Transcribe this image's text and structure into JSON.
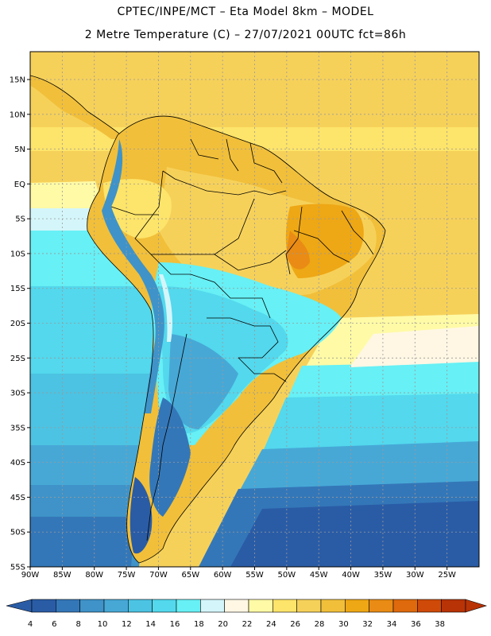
{
  "header": {
    "title_line1": "CPTEC/INPE/MCT –  Eta Model 8km – MODEL",
    "title_line2": "2 Metre Temperature (C) – 27/07/2021 00UTC fct=86h"
  },
  "map": {
    "lon_range": [
      -90,
      -20
    ],
    "lat_range": [
      -55,
      19
    ],
    "grid_lines": true,
    "lat_ticks": [
      {
        "value": 15,
        "label": "15N"
      },
      {
        "value": 10,
        "label": "10N"
      },
      {
        "value": 5,
        "label": "5N"
      },
      {
        "value": 0,
        "label": "EQ"
      },
      {
        "value": -5,
        "label": "5S"
      },
      {
        "value": -10,
        "label": "10S"
      },
      {
        "value": -15,
        "label": "15S"
      },
      {
        "value": -20,
        "label": "20S"
      },
      {
        "value": -25,
        "label": "25S"
      },
      {
        "value": -30,
        "label": "30S"
      },
      {
        "value": -35,
        "label": "35S"
      },
      {
        "value": -40,
        "label": "40S"
      },
      {
        "value": -45,
        "label": "45S"
      },
      {
        "value": -50,
        "label": "50S"
      },
      {
        "value": -55,
        "label": "55S"
      }
    ],
    "lon_ticks": [
      {
        "value": -90,
        "label": "90W"
      },
      {
        "value": -85,
        "label": "85W"
      },
      {
        "value": -80,
        "label": "80W"
      },
      {
        "value": -75,
        "label": "75W"
      },
      {
        "value": -70,
        "label": "70W"
      },
      {
        "value": -65,
        "label": "65W"
      },
      {
        "value": -60,
        "label": "60W"
      },
      {
        "value": -55,
        "label": "55W"
      },
      {
        "value": -50,
        "label": "50W"
      },
      {
        "value": -45,
        "label": "45W"
      },
      {
        "value": -40,
        "label": "40W"
      },
      {
        "value": -35,
        "label": "35W"
      },
      {
        "value": -30,
        "label": "30W"
      },
      {
        "value": -25,
        "label": "25W"
      }
    ]
  },
  "colorbar": {
    "labels": [
      "4",
      "6",
      "8",
      "10",
      "12",
      "14",
      "16",
      "18",
      "20",
      "22",
      "24",
      "26",
      "28",
      "30",
      "32",
      "34",
      "36",
      "38"
    ],
    "colors": [
      "#2a5ca6",
      "#3477b8",
      "#3f93c8",
      "#47a8d6",
      "#4cc3e2",
      "#53d8ed",
      "#67f0f5",
      "#d4f6fa",
      "#fff7e4",
      "#fffaa6",
      "#fde46a",
      "#f6d15a",
      "#f1bf3a",
      "#eea715",
      "#e98b14",
      "#de6a0d",
      "#cf4a08",
      "#b83306"
    ]
  }
}
